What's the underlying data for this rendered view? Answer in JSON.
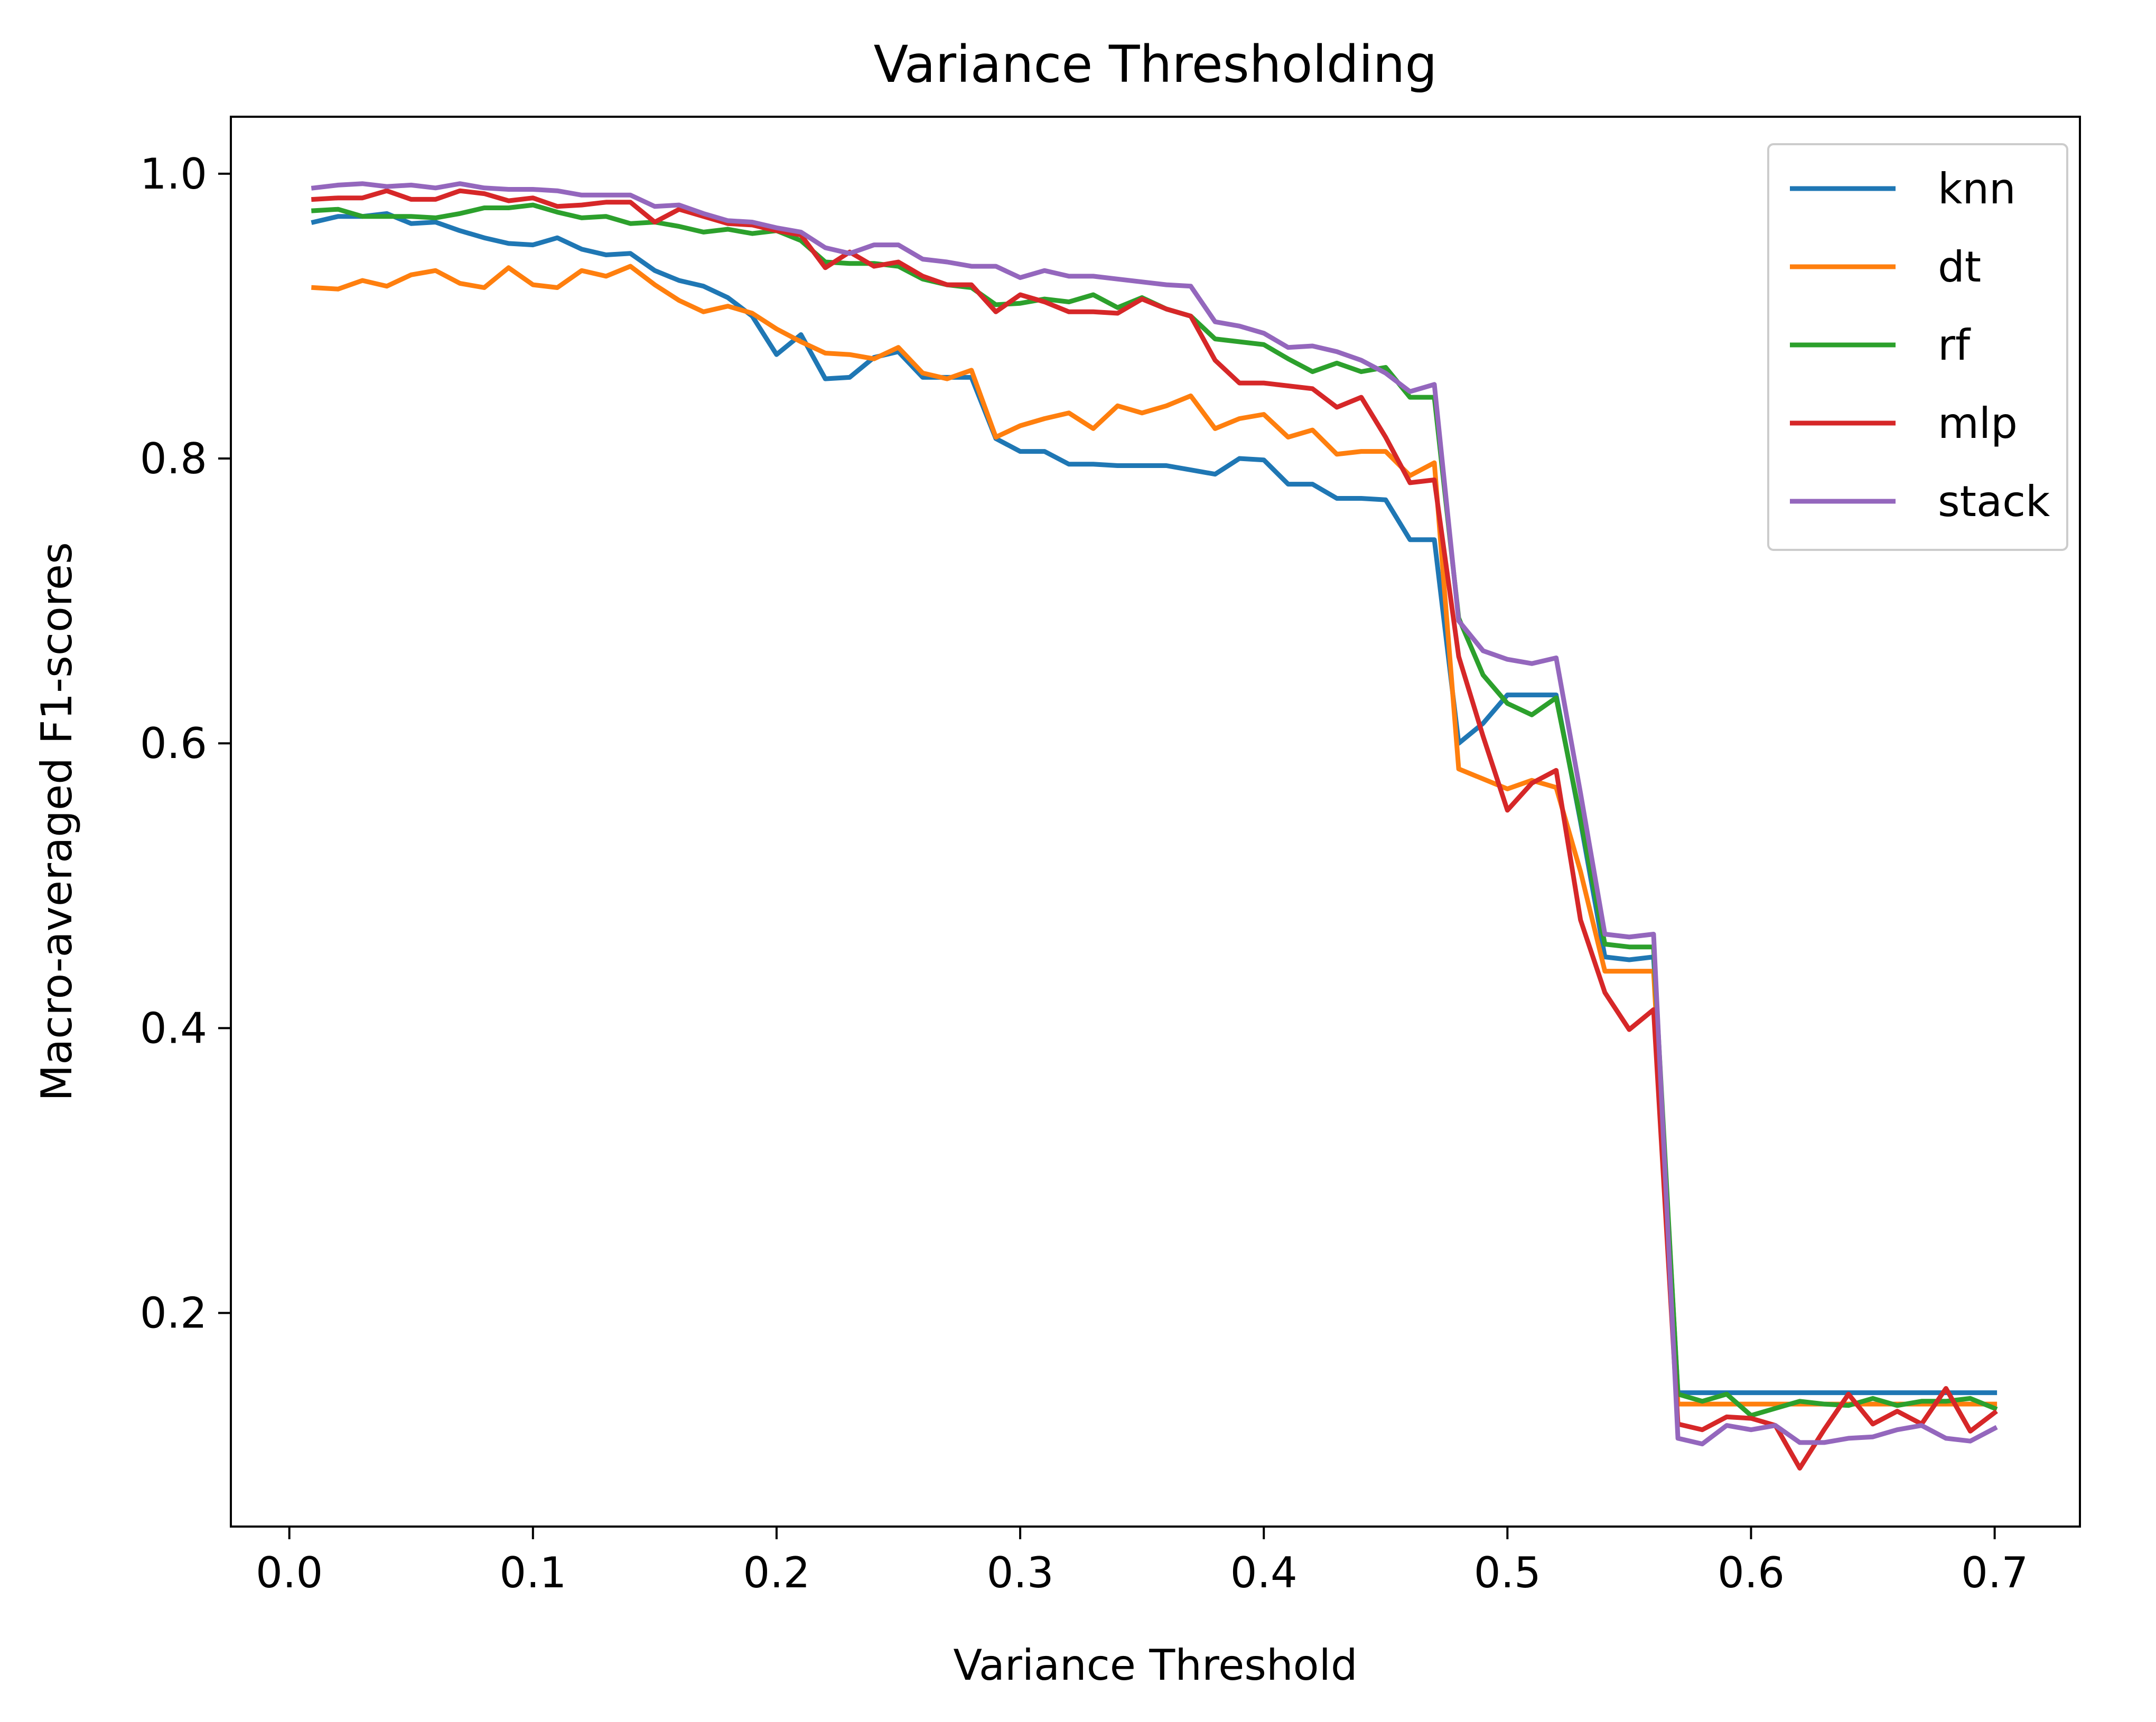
{
  "chart_data": {
    "type": "line",
    "title": "Variance Thresholding",
    "xlabel": "Variance Threshold",
    "ylabel": "Macro-averaged F1-scores",
    "xlim": [
      -0.024,
      0.735
    ],
    "ylim": [
      0.05,
      1.04
    ],
    "xticks": [
      0.0,
      0.1,
      0.2,
      0.3,
      0.4,
      0.5,
      0.6,
      0.7
    ],
    "xtick_labels": [
      "0.0",
      "0.1",
      "0.2",
      "0.3",
      "0.4",
      "0.5",
      "0.6",
      "0.7"
    ],
    "yticks": [
      0.2,
      0.4,
      0.6,
      0.8,
      1.0
    ],
    "ytick_labels": [
      "0.2",
      "0.4",
      "0.6",
      "0.8",
      "1.0"
    ],
    "grid": false,
    "legend_position": "top-right",
    "x": [
      0.01,
      0.02,
      0.03,
      0.04,
      0.05,
      0.06,
      0.07,
      0.08,
      0.09,
      0.1,
      0.11,
      0.12,
      0.13,
      0.14,
      0.15,
      0.16,
      0.17,
      0.18,
      0.19,
      0.2,
      0.21,
      0.22,
      0.23,
      0.24,
      0.25,
      0.26,
      0.27,
      0.28,
      0.29,
      0.3,
      0.31,
      0.32,
      0.33,
      0.34,
      0.35,
      0.36,
      0.37,
      0.38,
      0.39,
      0.4,
      0.41,
      0.42,
      0.43,
      0.44,
      0.45,
      0.46,
      0.47,
      0.48,
      0.49,
      0.5,
      0.51,
      0.52,
      0.53,
      0.54,
      0.55,
      0.56,
      0.57,
      0.58,
      0.59,
      0.6,
      0.61,
      0.62,
      0.63,
      0.64,
      0.65,
      0.66,
      0.67,
      0.68,
      0.69,
      0.7
    ],
    "series": [
      {
        "name": "knn",
        "color": "#1f77b4",
        "values": [
          0.966,
          0.97,
          0.97,
          0.972,
          0.965,
          0.966,
          0.96,
          0.955,
          0.951,
          0.95,
          0.955,
          0.947,
          0.943,
          0.944,
          0.932,
          0.925,
          0.921,
          0.913,
          0.9,
          0.873,
          0.887,
          0.856,
          0.857,
          0.871,
          0.875,
          0.857,
          0.857,
          0.857,
          0.814,
          0.805,
          0.805,
          0.796,
          0.796,
          0.795,
          0.795,
          0.795,
          0.792,
          0.789,
          0.8,
          0.799,
          0.782,
          0.782,
          0.772,
          0.772,
          0.771,
          0.743,
          0.743,
          0.6,
          0.614,
          0.634,
          0.634,
          0.634,
          0.545,
          0.45,
          0.448,
          0.45,
          0.144,
          0.144,
          0.144,
          0.144,
          0.144,
          0.144,
          0.144,
          0.144,
          0.144,
          0.144,
          0.144,
          0.144,
          0.144,
          0.144
        ]
      },
      {
        "name": "dt",
        "color": "#ff7f0e",
        "values": [
          0.92,
          0.919,
          0.925,
          0.921,
          0.929,
          0.932,
          0.923,
          0.92,
          0.934,
          0.922,
          0.92,
          0.932,
          0.928,
          0.935,
          0.922,
          0.911,
          0.903,
          0.907,
          0.902,
          0.891,
          0.882,
          0.874,
          0.873,
          0.87,
          0.878,
          0.86,
          0.856,
          0.862,
          0.815,
          0.823,
          0.828,
          0.832,
          0.821,
          0.837,
          0.832,
          0.837,
          0.844,
          0.821,
          0.828,
          0.831,
          0.815,
          0.82,
          0.803,
          0.805,
          0.805,
          0.788,
          0.797,
          0.582,
          0.575,
          0.568,
          0.574,
          0.569,
          0.51,
          0.44,
          0.44,
          0.44,
          0.136,
          0.136,
          0.136,
          0.136,
          0.136,
          0.136,
          0.136,
          0.136,
          0.136,
          0.136,
          0.136,
          0.136,
          0.136,
          0.136
        ]
      },
      {
        "name": "rf",
        "color": "#2ca02c",
        "values": [
          0.974,
          0.975,
          0.97,
          0.97,
          0.97,
          0.969,
          0.972,
          0.976,
          0.976,
          0.978,
          0.973,
          0.969,
          0.97,
          0.965,
          0.966,
          0.963,
          0.959,
          0.961,
          0.958,
          0.96,
          0.953,
          0.938,
          0.937,
          0.937,
          0.935,
          0.926,
          0.922,
          0.92,
          0.908,
          0.909,
          0.912,
          0.91,
          0.915,
          0.906,
          0.913,
          0.905,
          0.9,
          0.884,
          0.882,
          0.88,
          0.87,
          0.861,
          0.867,
          0.861,
          0.864,
          0.843,
          0.843,
          0.688,
          0.648,
          0.628,
          0.62,
          0.632,
          0.547,
          0.459,
          0.457,
          0.457,
          0.143,
          0.138,
          0.143,
          0.128,
          0.133,
          0.138,
          0.136,
          0.135,
          0.14,
          0.135,
          0.138,
          0.138,
          0.14,
          0.133
        ]
      },
      {
        "name": "mlp",
        "color": "#d62728",
        "values": [
          0.982,
          0.983,
          0.983,
          0.988,
          0.982,
          0.982,
          0.988,
          0.986,
          0.981,
          0.983,
          0.977,
          0.978,
          0.98,
          0.98,
          0.966,
          0.975,
          0.97,
          0.965,
          0.964,
          0.96,
          0.957,
          0.934,
          0.945,
          0.935,
          0.938,
          0.928,
          0.922,
          0.922,
          0.903,
          0.915,
          0.91,
          0.903,
          0.903,
          0.902,
          0.912,
          0.905,
          0.9,
          0.869,
          0.853,
          0.853,
          0.851,
          0.849,
          0.836,
          0.843,
          0.815,
          0.783,
          0.785,
          0.661,
          0.605,
          0.553,
          0.572,
          0.581,
          0.476,
          0.425,
          0.399,
          0.413,
          0.122,
          0.118,
          0.127,
          0.126,
          0.121,
          0.091,
          0.118,
          0.143,
          0.122,
          0.131,
          0.122,
          0.147,
          0.117,
          0.13
        ]
      },
      {
        "name": "stack",
        "color": "#9467bd",
        "values": [
          0.99,
          0.992,
          0.993,
          0.991,
          0.992,
          0.99,
          0.993,
          0.99,
          0.989,
          0.989,
          0.988,
          0.985,
          0.985,
          0.985,
          0.977,
          0.978,
          0.972,
          0.967,
          0.966,
          0.962,
          0.959,
          0.948,
          0.944,
          0.95,
          0.95,
          0.94,
          0.938,
          0.935,
          0.935,
          0.927,
          0.932,
          0.928,
          0.928,
          0.926,
          0.924,
          0.922,
          0.921,
          0.896,
          0.893,
          0.888,
          0.878,
          0.879,
          0.875,
          0.869,
          0.86,
          0.847,
          0.852,
          0.686,
          0.665,
          0.659,
          0.656,
          0.66,
          0.565,
          0.466,
          0.464,
          0.466,
          0.112,
          0.108,
          0.121,
          0.118,
          0.121,
          0.109,
          0.109,
          0.112,
          0.113,
          0.118,
          0.121,
          0.112,
          0.11,
          0.119
        ]
      }
    ]
  }
}
